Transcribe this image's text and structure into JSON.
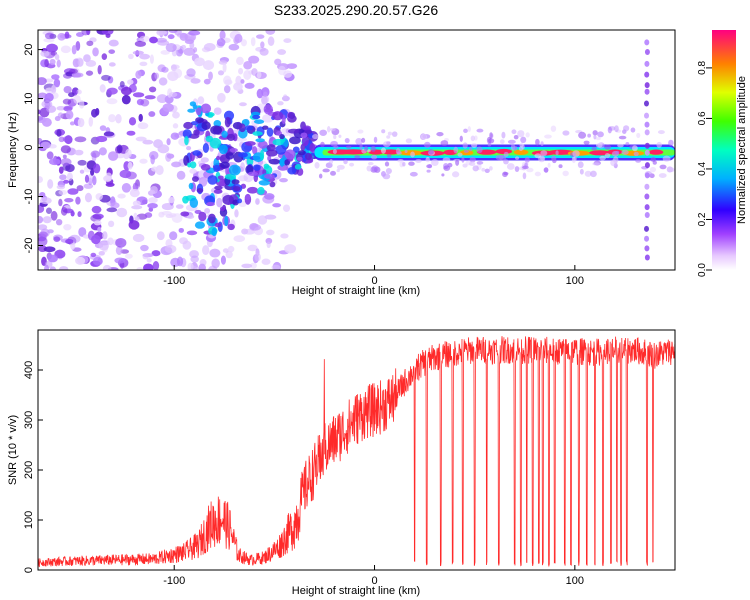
{
  "title": "S233.2025.290.20.57.G26",
  "colors": {
    "snr_line": "#ff2a2a",
    "axis": "#000000",
    "background": "#ffffff"
  },
  "chart_data": [
    {
      "type": "heatmap",
      "name": "spectrogram",
      "xlabel": "Height of straight line (km)",
      "ylabel": "Frequency (Hz)",
      "xlim": [
        -168,
        150
      ],
      "ylim": [
        -25,
        24
      ],
      "x_ticks": [
        -100,
        0,
        100
      ],
      "x_tick_labels": [
        "-100",
        "0",
        "100"
      ],
      "y_ticks": [
        -20,
        -10,
        0,
        10,
        20
      ],
      "y_tick_labels": [
        "-20",
        "-10",
        "0",
        "10",
        "20"
      ],
      "features": {
        "carrier_frequency_hz": -1,
        "carrier_start_km": -30,
        "carrier_end_km": 150,
        "scatter_region_km": [
          -168,
          -50
        ],
        "spike_km": 136
      },
      "colorbar": {
        "label": "Normalized spectral amplitude",
        "range": [
          0,
          0.95
        ],
        "ticks": [
          0.0,
          0.2,
          0.4,
          0.6,
          0.8
        ],
        "tick_labels": [
          "0.0",
          "0.2",
          "0.4",
          "0.6",
          "0.8"
        ]
      }
    },
    {
      "type": "line",
      "name": "snr",
      "xlabel": "Height of straight line (km)",
      "ylabel": "SNR (10 * v/v)",
      "xlim": [
        -168,
        150
      ],
      "ylim": [
        0,
        480
      ],
      "x_ticks": [
        -100,
        0,
        100
      ],
      "x_tick_labels": [
        "-100",
        "0",
        "100"
      ],
      "y_ticks": [
        0,
        100,
        200,
        300,
        400
      ],
      "y_tick_labels": [
        "0",
        "100",
        "200",
        "300",
        "400"
      ],
      "series": [
        {
          "name": "SNR",
          "x": [
            -168,
            -150,
            -130,
            -110,
            -95,
            -88,
            -82,
            -76,
            -72,
            -68,
            -62,
            -55,
            -48,
            -40,
            -35,
            -30,
            -25,
            -20,
            -15,
            -10,
            -5,
            0,
            5,
            10,
            15,
            20,
            25,
            30,
            35,
            40,
            50,
            60,
            70,
            80,
            90,
            100,
            110,
            120,
            130,
            140,
            150
          ],
          "values": [
            15,
            18,
            20,
            22,
            35,
            50,
            90,
            105,
            80,
            30,
            20,
            25,
            45,
            90,
            160,
            200,
            240,
            260,
            280,
            300,
            315,
            320,
            330,
            345,
            375,
            400,
            415,
            425,
            430,
            435,
            440,
            440,
            440,
            440,
            438,
            438,
            435,
            440,
            440,
            430,
            440
          ]
        }
      ],
      "dropouts_km": [
        20,
        26,
        33,
        39,
        44,
        50,
        56,
        62,
        70,
        73,
        76,
        79,
        82,
        84,
        87,
        90,
        95,
        98,
        102,
        106,
        110,
        114,
        118,
        121,
        123,
        126,
        136,
        139
      ]
    }
  ]
}
